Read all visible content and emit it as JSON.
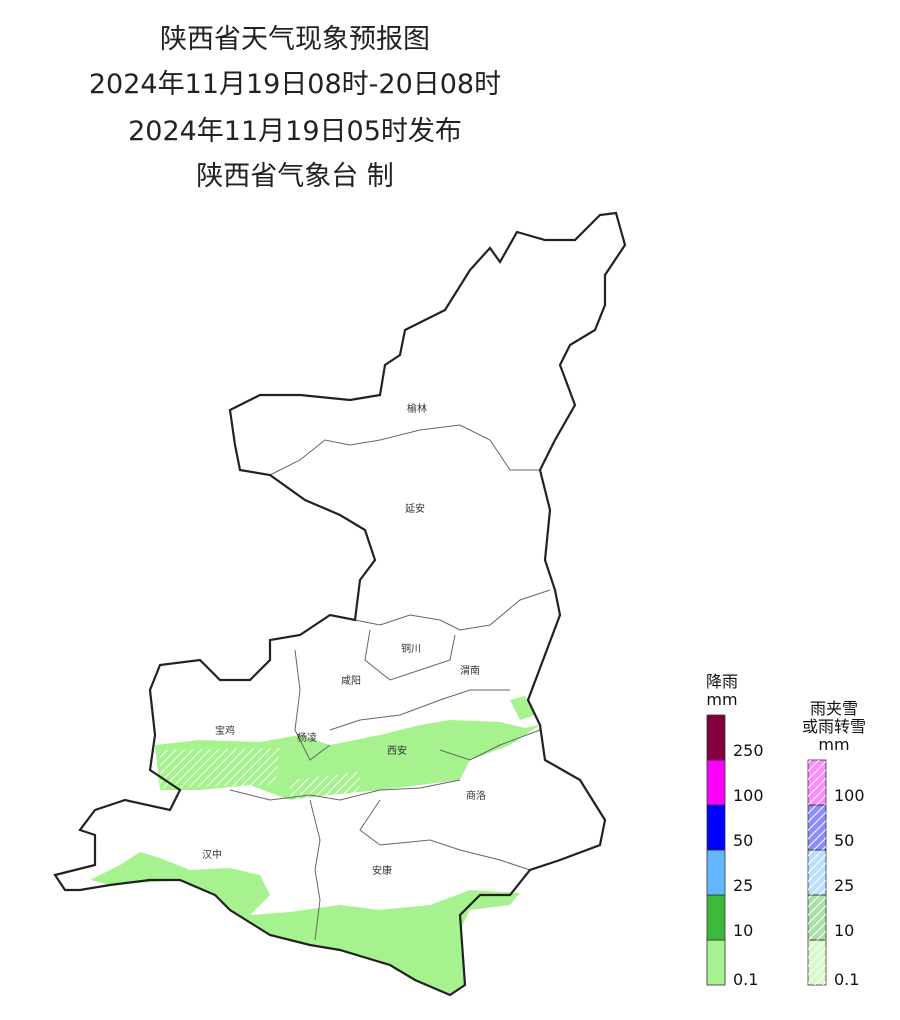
{
  "header": {
    "title": "陕西省天气现象预报图",
    "period": "2024年11月19日08时-20日08时",
    "issued": "2024年11月19日05时发布",
    "issuer": "陕西省气象台 制"
  },
  "cities": [
    {
      "label": "榆林"
    },
    {
      "label": "延安"
    },
    {
      "label": "铜川"
    },
    {
      "label": "咸阳"
    },
    {
      "label": "渭南"
    },
    {
      "label": "宝鸡"
    },
    {
      "label": "杨凌"
    },
    {
      "label": "西安"
    },
    {
      "label": "商洛"
    },
    {
      "label": "汉中"
    },
    {
      "label": "安康"
    }
  ],
  "legends": [
    {
      "title": "降雨",
      "unit": "mm",
      "levels": [
        {
          "value": 0.1,
          "color": "#a6f28f"
        },
        {
          "value": 10,
          "color": "#3dba3d"
        },
        {
          "value": 25,
          "color": "#61b8ff"
        },
        {
          "value": 50,
          "color": "#0000fe"
        },
        {
          "value": 100,
          "color": "#fa00fa"
        },
        {
          "value": 250,
          "color": "#800040"
        }
      ]
    },
    {
      "title": "雨夹雪",
      "subtitle": "或雨转雪",
      "unit": "mm",
      "levels": [
        {
          "value": 0.1,
          "color": "#a6f28f"
        },
        {
          "value": 10,
          "color": "#3dba3d"
        },
        {
          "value": 25,
          "color": "#61b8ff"
        },
        {
          "value": 50,
          "color": "#0000fe"
        },
        {
          "value": 100,
          "color": "#fa00fa"
        }
      ]
    }
  ]
}
